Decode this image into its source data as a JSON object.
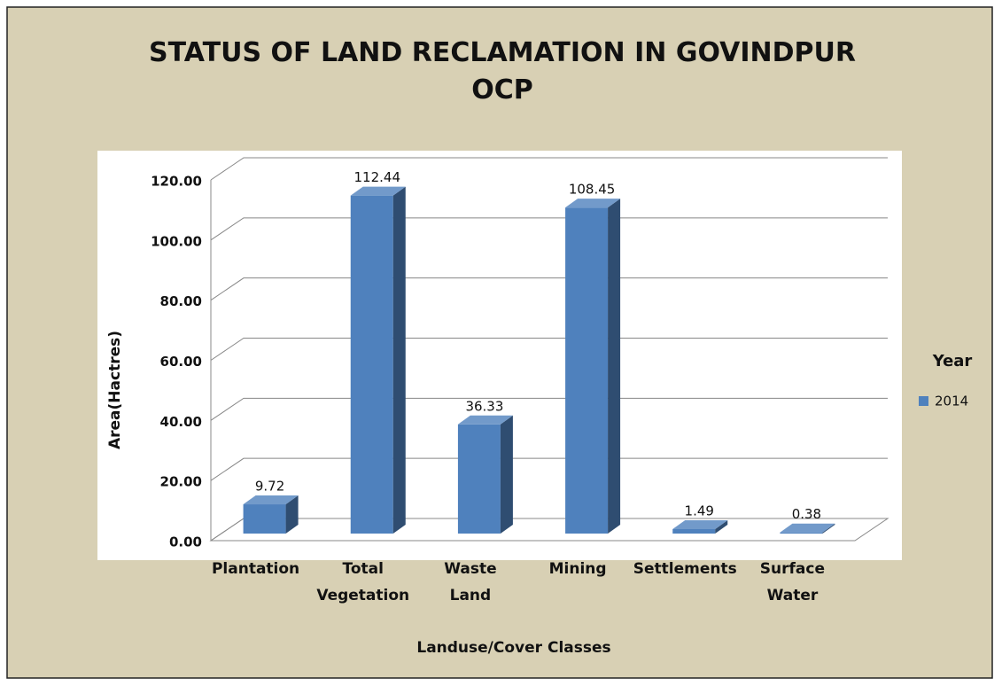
{
  "chart_data": {
    "type": "bar3d",
    "title": "STATUS OF LAND RECLAMATION IN GOVINDPUR OCP",
    "x_label": "Landuse/Cover Classes",
    "y_label": "Area(Hactres)",
    "legend_title": "Year",
    "categories": [
      "Plantation",
      "Total Vegetation",
      "Waste Land",
      "Mining",
      "Settlements",
      "Surface Water"
    ],
    "series": [
      {
        "name": "2014",
        "color": "#4f81bd",
        "values": [
          9.72,
          112.44,
          36.33,
          108.45,
          1.49,
          0.38
        ]
      }
    ],
    "ylim": [
      0,
      120
    ],
    "yticks": [
      {
        "value": 0,
        "label": "0.00"
      },
      {
        "value": 20,
        "label": "20.00"
      },
      {
        "value": 40,
        "label": "40.00"
      },
      {
        "value": 60,
        "label": "60.00"
      },
      {
        "value": 80,
        "label": "80.00"
      },
      {
        "value": 100,
        "label": "100.00"
      },
      {
        "value": 120,
        "label": "120.00"
      }
    ],
    "grid": true
  }
}
